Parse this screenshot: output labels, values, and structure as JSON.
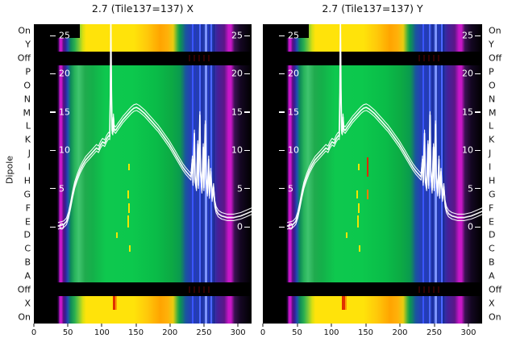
{
  "figure": {
    "rows": [
      {
        "label": "On",
        "type": "band top"
      },
      {
        "label": "Y",
        "type": "band"
      },
      {
        "label": "Off",
        "type": "off"
      },
      {
        "label": "P",
        "type": "mid"
      },
      {
        "label": "O",
        "type": "mid"
      },
      {
        "label": "N",
        "type": "mid"
      },
      {
        "label": "M",
        "type": "mid"
      },
      {
        "label": "L",
        "type": "mid"
      },
      {
        "label": "K",
        "type": "mid"
      },
      {
        "label": "J",
        "type": "mid"
      },
      {
        "label": "I",
        "type": "mid"
      },
      {
        "label": "H",
        "type": "mid"
      },
      {
        "label": "G",
        "type": "mid"
      },
      {
        "label": "F",
        "type": "mid"
      },
      {
        "label": "E",
        "type": "mid"
      },
      {
        "label": "D",
        "type": "mid"
      },
      {
        "label": "C",
        "type": "mid"
      },
      {
        "label": "B",
        "type": "mid"
      },
      {
        "label": "A",
        "type": "mid"
      },
      {
        "label": "Off",
        "type": "off"
      },
      {
        "label": "X",
        "type": "band red"
      },
      {
        "label": "On",
        "type": "band"
      }
    ],
    "streaks": [
      {
        "u": 232.5,
        "w": 2,
        "c": "#3a55ff"
      },
      {
        "u": 237.5,
        "w": 1,
        "c": "#2237c9"
      },
      {
        "u": 242.5,
        "w": 2,
        "c": "#4b66ff"
      },
      {
        "u": 247,
        "w": 1,
        "c": "#1a2a9e"
      },
      {
        "u": 251,
        "w": 3,
        "c": "#7d94ff"
      },
      {
        "u": 256,
        "w": 1,
        "c": "#2237c9"
      },
      {
        "u": 260,
        "w": 2,
        "c": "#4b66ff"
      },
      {
        "u": 264,
        "w": 1,
        "c": "#16228a"
      }
    ],
    "palette": {
      "background": "#ffffff",
      "panel_black": "#000000",
      "magenta": "#c816c8",
      "purple": "#5c1787",
      "indigo": "#3a1a96",
      "blue": "#2540b4",
      "blue_streak": "#4b66ff",
      "teal": "#0e8a58",
      "green": "#0cc84d",
      "yellow_green": "#7ac93a",
      "yellow": "#f2e400",
      "orange": "#ffa400",
      "red": "#e03000",
      "curve_white": "#ffffff",
      "text": "#111111"
    }
  },
  "chart_data": {
    "type": "heatmap",
    "description": "Two dipole-vs-frequency-channel heatmaps with an overlaid white power line per panel",
    "panels": [
      {
        "title": "2.7 (Tile137=137) X",
        "marks": [
          {
            "u": 139,
            "row": 10,
            "h": 0.5
          },
          {
            "u": 137,
            "row": 12,
            "h": 0.6
          },
          {
            "u": 139,
            "row": 13,
            "h": 0.7
          },
          {
            "u": 138,
            "row": 14,
            "h": 0.9
          },
          {
            "u": 121,
            "row": 15,
            "h": 0.4
          },
          {
            "u": 140,
            "row": 16,
            "h": 0.5
          }
        ]
      },
      {
        "title": "2.7 (Tile137=137) Y",
        "marks": [
          {
            "u": 139,
            "row": 10,
            "h": 0.5
          },
          {
            "u": 137,
            "row": 12,
            "h": 0.6
          },
          {
            "u": 139,
            "row": 13,
            "h": 0.7
          },
          {
            "u": 138,
            "row": 14,
            "h": 0.9
          },
          {
            "u": 121,
            "row": 15,
            "h": 0.4
          },
          {
            "u": 140,
            "row": 16,
            "h": 0.5
          },
          {
            "u": 152,
            "row": 10,
            "h": 1.4,
            "c": "#dd2a00"
          },
          {
            "u": 152,
            "row": 12,
            "h": 0.7,
            "c": "#ff7b00"
          }
        ]
      }
    ],
    "x_axis": {
      "range": [
        0,
        320
      ],
      "ticks": [
        0,
        50,
        100,
        150,
        200,
        250,
        300
      ]
    },
    "y_axis": {
      "label": "Dipole",
      "rows_top_to_bottom": [
        "On",
        "Y",
        "Off",
        "P",
        "O",
        "N",
        "M",
        "L",
        "K",
        "J",
        "I",
        "H",
        "G",
        "F",
        "E",
        "D",
        "C",
        "B",
        "A",
        "Off",
        "X",
        "On"
      ]
    },
    "overlay_line": {
      "color": "#ffffff",
      "y_ticks": [
        25,
        20,
        15,
        10,
        5,
        0
      ],
      "y_range": [
        0,
        27
      ],
      "points": [
        [
          36,
          0.1
        ],
        [
          44,
          0.3
        ],
        [
          48,
          0.7
        ],
        [
          51,
          1.5
        ],
        [
          54,
          2.8
        ],
        [
          57,
          4.2
        ],
        [
          60,
          5.4
        ],
        [
          64,
          6.5
        ],
        [
          68,
          7.4
        ],
        [
          72,
          8.1
        ],
        [
          76,
          8.7
        ],
        [
          80,
          9.1
        ],
        [
          84,
          9.5
        ],
        [
          88,
          9.9
        ],
        [
          92,
          10.3
        ],
        [
          95,
          10.1
        ],
        [
          98,
          10.7
        ],
        [
          101,
          11.1
        ],
        [
          104,
          10.9
        ],
        [
          107,
          11.5
        ],
        [
          110,
          11.9
        ],
        [
          111.5,
          11.8
        ],
        [
          112.5,
          17.5
        ],
        [
          113.2,
          26.5
        ],
        [
          114,
          18
        ],
        [
          115,
          12.6
        ],
        [
          116,
          12.4
        ],
        [
          117,
          14.3
        ],
        [
          118,
          12.8
        ],
        [
          120,
          12.6
        ],
        [
          123,
          13
        ],
        [
          127,
          13.5
        ],
        [
          131,
          14
        ],
        [
          135,
          14.4
        ],
        [
          139,
          14.8
        ],
        [
          143,
          15.2
        ],
        [
          147,
          15.5
        ],
        [
          151,
          15.6
        ],
        [
          155,
          15.4
        ],
        [
          159,
          15.1
        ],
        [
          163,
          14.8
        ],
        [
          167,
          14.4
        ],
        [
          171,
          14
        ],
        [
          175,
          13.6
        ],
        [
          179,
          13.2
        ],
        [
          183,
          12.8
        ],
        [
          187,
          12.3
        ],
        [
          191,
          11.8
        ],
        [
          195,
          11.3
        ],
        [
          199,
          10.8
        ],
        [
          203,
          10.2
        ],
        [
          207,
          9.6
        ],
        [
          211,
          9
        ],
        [
          215,
          8.4
        ],
        [
          219,
          7.8
        ],
        [
          223,
          7.3
        ],
        [
          227,
          6.9
        ],
        [
          231,
          6.5
        ],
        [
          233,
          8.8
        ],
        [
          234,
          5.8
        ],
        [
          236,
          12.2
        ],
        [
          237,
          6.2
        ],
        [
          239,
          5.1
        ],
        [
          241,
          10.8
        ],
        [
          242,
          5.4
        ],
        [
          244,
          14.6
        ],
        [
          245,
          7.2
        ],
        [
          247,
          4.8
        ],
        [
          249,
          10.4
        ],
        [
          250,
          5.1
        ],
        [
          252,
          13.4
        ],
        [
          253,
          6.4
        ],
        [
          255,
          4.4
        ],
        [
          257,
          8.8
        ],
        [
          258,
          4.1
        ],
        [
          260,
          7.2
        ],
        [
          262,
          3.7
        ],
        [
          264,
          5.2
        ],
        [
          266,
          3
        ],
        [
          268,
          2.2
        ],
        [
          271,
          1.7
        ],
        [
          276,
          1.4
        ],
        [
          284,
          1.2
        ],
        [
          294,
          1.2
        ],
        [
          304,
          1.4
        ],
        [
          312,
          1.7
        ],
        [
          320,
          2
        ]
      ]
    },
    "color_regions_by_x": [
      {
        "x": [
          0,
          35
        ],
        "color": "black"
      },
      {
        "x": [
          36,
          41
        ],
        "color": "magenta edge line"
      },
      {
        "x": [
          41,
          52
        ],
        "color": "purple-indigo"
      },
      {
        "x": [
          52,
          215
        ],
        "color": "green (yellow/orange in On/Y/X rows)"
      },
      {
        "x": [
          215,
          228
        ],
        "color": "teal"
      },
      {
        "x": [
          228,
          266
        ],
        "color": "blue with bright vertical streaks"
      },
      {
        "x": [
          266,
          290
        ],
        "color": "purple with magenta line"
      },
      {
        "x": [
          290,
          320
        ],
        "color": "fade to black"
      }
    ],
    "off_rows_color": "black"
  }
}
